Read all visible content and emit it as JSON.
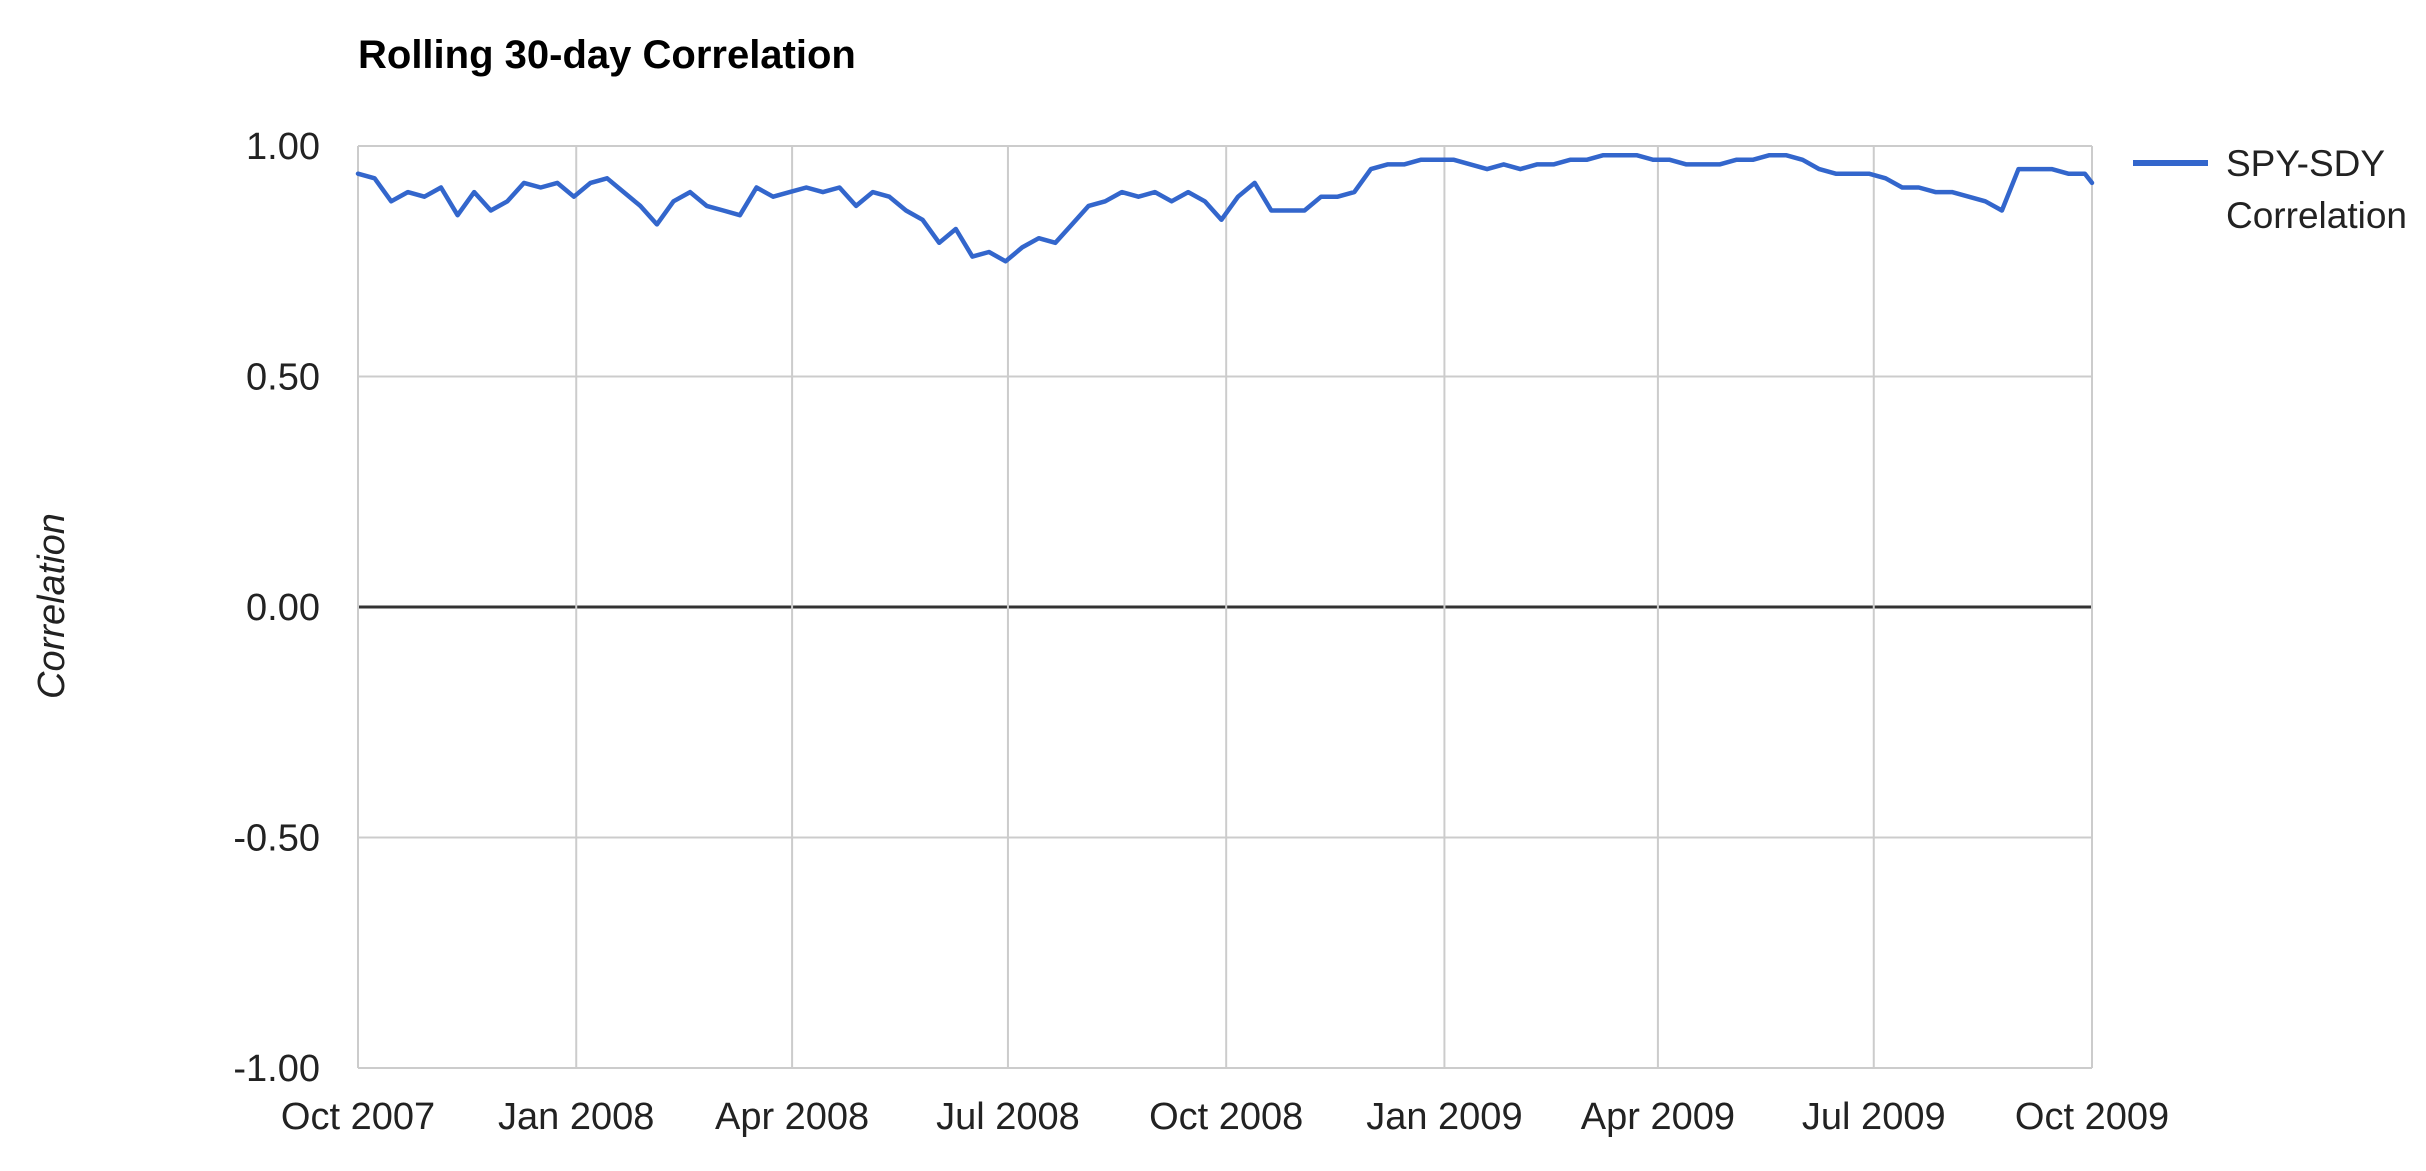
{
  "chart_data": {
    "type": "line",
    "title": "Rolling 30-day Correlation",
    "xlabel": "",
    "ylabel": "Correlation",
    "ylim": [
      -1,
      1
    ],
    "xlim": [
      "2007-10-01",
      "2009-10-01"
    ],
    "y_ticks": [
      "1.00",
      "0.50",
      "0.00",
      "-0.50",
      "-1.00"
    ],
    "x_ticks": [
      {
        "date": "2007-10-01",
        "label": "Oct 2007"
      },
      {
        "date": "2008-01-01",
        "label": "Jan 2008"
      },
      {
        "date": "2008-04-01",
        "label": "Apr 2008"
      },
      {
        "date": "2008-07-01",
        "label": "Jul 2008"
      },
      {
        "date": "2008-10-01",
        "label": "Oct 2008"
      },
      {
        "date": "2009-01-01",
        "label": "Jan 2009"
      },
      {
        "date": "2009-04-01",
        "label": "Apr 2009"
      },
      {
        "date": "2009-07-01",
        "label": "Jul 2009"
      },
      {
        "date": "2009-10-01",
        "label": "Oct 2009"
      }
    ],
    "grid": true,
    "legend_position": "right",
    "series": [
      {
        "name": "SPY-SDY Correlation",
        "color": "#3366cc",
        "x": [
          "2007-10-01",
          "2007-10-08",
          "2007-10-15",
          "2007-10-22",
          "2007-10-29",
          "2007-11-05",
          "2007-11-12",
          "2007-11-19",
          "2007-11-26",
          "2007-12-03",
          "2007-12-10",
          "2007-12-17",
          "2007-12-24",
          "2007-12-31",
          "2008-01-07",
          "2008-01-14",
          "2008-01-21",
          "2008-01-28",
          "2008-02-04",
          "2008-02-11",
          "2008-02-18",
          "2008-02-25",
          "2008-03-03",
          "2008-03-10",
          "2008-03-17",
          "2008-03-24",
          "2008-03-31",
          "2008-04-07",
          "2008-04-14",
          "2008-04-21",
          "2008-04-28",
          "2008-05-05",
          "2008-05-12",
          "2008-05-19",
          "2008-05-26",
          "2008-06-02",
          "2008-06-09",
          "2008-06-16",
          "2008-06-23",
          "2008-06-30",
          "2008-07-07",
          "2008-07-14",
          "2008-07-21",
          "2008-07-28",
          "2008-08-04",
          "2008-08-11",
          "2008-08-18",
          "2008-08-25",
          "2008-09-01",
          "2008-09-08",
          "2008-09-15",
          "2008-09-22",
          "2008-09-29",
          "2008-10-06",
          "2008-10-13",
          "2008-10-20",
          "2008-10-27",
          "2008-11-03",
          "2008-11-10",
          "2008-11-17",
          "2008-11-24",
          "2008-12-01",
          "2008-12-08",
          "2008-12-15",
          "2008-12-22",
          "2008-12-29",
          "2009-01-05",
          "2009-01-12",
          "2009-01-19",
          "2009-01-26",
          "2009-02-02",
          "2009-02-09",
          "2009-02-16",
          "2009-02-23",
          "2009-03-02",
          "2009-03-09",
          "2009-03-16",
          "2009-03-23",
          "2009-03-30",
          "2009-04-06",
          "2009-04-13",
          "2009-04-20",
          "2009-04-27",
          "2009-05-04",
          "2009-05-11",
          "2009-05-18",
          "2009-05-25",
          "2009-06-01",
          "2009-06-08",
          "2009-06-15",
          "2009-06-22",
          "2009-06-29",
          "2009-07-06",
          "2009-07-13",
          "2009-07-20",
          "2009-07-27",
          "2009-08-03",
          "2009-08-10",
          "2009-08-17",
          "2009-08-24",
          "2009-08-31",
          "2009-09-07",
          "2009-09-14",
          "2009-09-21",
          "2009-09-28",
          "2009-10-01"
        ],
        "y": [
          0.94,
          0.93,
          0.88,
          0.9,
          0.89,
          0.91,
          0.85,
          0.9,
          0.86,
          0.88,
          0.92,
          0.91,
          0.92,
          0.89,
          0.92,
          0.93,
          0.9,
          0.87,
          0.83,
          0.88,
          0.9,
          0.87,
          0.86,
          0.85,
          0.91,
          0.89,
          0.9,
          0.91,
          0.9,
          0.91,
          0.87,
          0.9,
          0.89,
          0.86,
          0.84,
          0.79,
          0.82,
          0.76,
          0.77,
          0.75,
          0.78,
          0.8,
          0.79,
          0.83,
          0.87,
          0.88,
          0.9,
          0.89,
          0.9,
          0.88,
          0.9,
          0.88,
          0.84,
          0.89,
          0.92,
          0.86,
          0.86,
          0.86,
          0.89,
          0.89,
          0.9,
          0.95,
          0.96,
          0.96,
          0.97,
          0.97,
          0.97,
          0.96,
          0.95,
          0.96,
          0.95,
          0.96,
          0.96,
          0.97,
          0.97,
          0.98,
          0.98,
          0.98,
          0.97,
          0.97,
          0.96,
          0.96,
          0.96,
          0.97,
          0.97,
          0.98,
          0.98,
          0.97,
          0.95,
          0.94,
          0.94,
          0.94,
          0.93,
          0.91,
          0.91,
          0.9,
          0.9,
          0.89,
          0.88,
          0.86,
          0.95,
          0.95,
          0.95,
          0.94,
          0.94,
          0.92
        ]
      }
    ]
  }
}
